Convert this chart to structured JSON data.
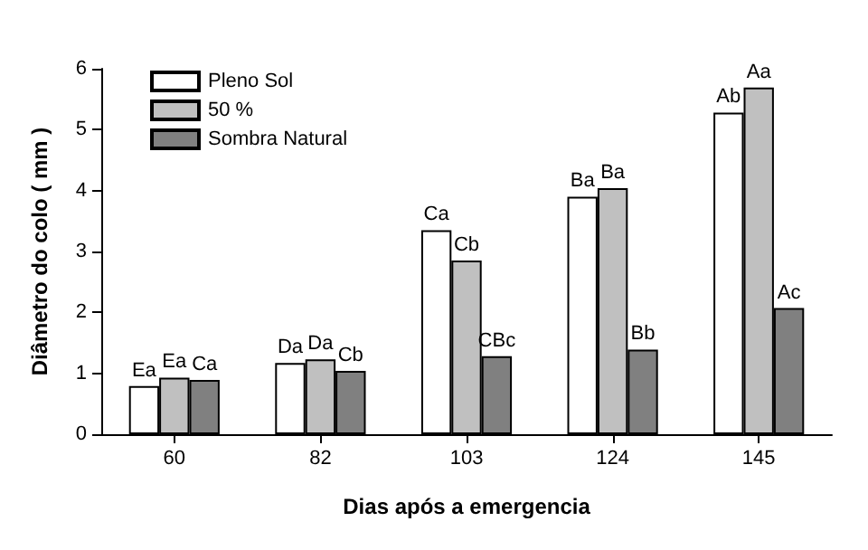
{
  "chart_data": {
    "type": "bar",
    "xlabel": "Dias após a emergencia",
    "ylabel": "Diâmetro do colo ( mm )",
    "categories": [
      "60",
      "82",
      "103",
      "124",
      "145"
    ],
    "series": [
      {
        "name": "Pleno Sol",
        "color": "#ffffff",
        "values": [
          0.79,
          1.17,
          3.35,
          3.9,
          5.28
        ],
        "value_labels": [
          "Ea",
          "Da",
          "Ca",
          "Ba",
          "Ab"
        ]
      },
      {
        "name": "50 %",
        "color": "#c0c0c0",
        "values": [
          0.93,
          1.23,
          2.85,
          4.04,
          5.69
        ],
        "value_labels": [
          "Ea",
          "Da",
          "Cb",
          "Ba",
          "Aa"
        ]
      },
      {
        "name": "Sombra Natural",
        "color": "#808080",
        "values": [
          0.89,
          1.04,
          1.28,
          1.39,
          2.07
        ],
        "value_labels": [
          "Ca",
          "Cb",
          "CBc",
          "Bb",
          "Ac"
        ]
      }
    ],
    "ylim": [
      0,
      6
    ],
    "yticks": [
      0,
      1,
      2,
      3,
      4,
      5,
      6
    ],
    "grid": false,
    "legend": "top left"
  }
}
